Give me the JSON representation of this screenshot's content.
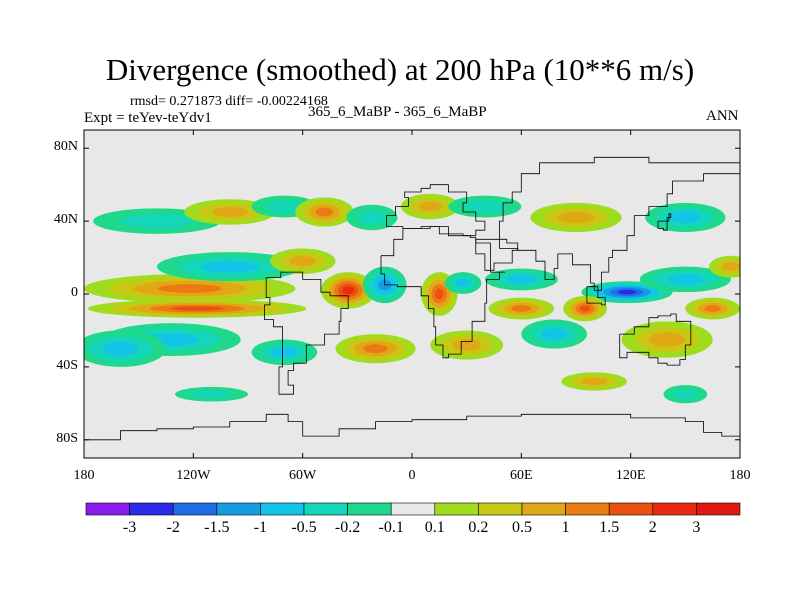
{
  "chart_data": {
    "type": "heatmap",
    "title": "Divergence (smoothed) at 200 hPa (10**6 m/s)",
    "stats": "rmsd= 0.271873  diff= -0.00224168",
    "experiment": "Expt = teYev-teYdv1",
    "cases": "365_6_MaBP - 365_6_MaBP",
    "season": "ANN",
    "xlim": [
      -180,
      180
    ],
    "ylim": [
      -90,
      90
    ],
    "x_ticks": [
      {
        "value": -180,
        "label": "180"
      },
      {
        "value": -120,
        "label": "120W"
      },
      {
        "value": -60,
        "label": "60W"
      },
      {
        "value": 0,
        "label": "0"
      },
      {
        "value": 60,
        "label": "60E"
      },
      {
        "value": 120,
        "label": "120E"
      },
      {
        "value": 180,
        "label": "180"
      }
    ],
    "y_ticks": [
      {
        "value": 80,
        "label": "80N"
      },
      {
        "value": 40,
        "label": "40N"
      },
      {
        "value": 0,
        "label": "0"
      },
      {
        "value": -40,
        "label": "40S"
      },
      {
        "value": -80,
        "label": "80S"
      }
    ],
    "colorbar": {
      "levels": [
        "-3",
        "-2",
        "-1.5",
        "-1",
        "-0.5",
        "-0.2",
        "-0.1",
        "0.1",
        "0.2",
        "0.5",
        "1",
        "1.5",
        "2",
        "3"
      ],
      "colors": [
        "#8a1cf0",
        "#2a2ae8",
        "#1f6ee8",
        "#149ee0",
        "#12c4e8",
        "#14d6b8",
        "#1ed88c",
        "#e8e8e8",
        "#a0dc1e",
        "#c8c814",
        "#e0a814",
        "#ec7a14",
        "#ec5010",
        "#e82a10",
        "#e01a10"
      ]
    },
    "background_color": "#e8e8e8",
    "features": [
      {
        "lon": -122,
        "lat": 3,
        "rlon": 58,
        "rlat": 8,
        "value": 1.0
      },
      {
        "lon": -118,
        "lat": -8,
        "rlon": 60,
        "rlat": 5,
        "value": 1.5
      },
      {
        "lon": -100,
        "lat": 15,
        "rlon": 40,
        "rlat": 8,
        "value": -0.5
      },
      {
        "lon": -132,
        "lat": -25,
        "rlon": 38,
        "rlat": 9,
        "value": -0.5
      },
      {
        "lon": -160,
        "lat": -30,
        "rlon": 25,
        "rlat": 10,
        "value": -0.5
      },
      {
        "lon": -140,
        "lat": 40,
        "rlon": 35,
        "rlat": 7,
        "value": -0.2
      },
      {
        "lon": -100,
        "lat": 45,
        "rlon": 25,
        "rlat": 7,
        "value": 0.5
      },
      {
        "lon": -70,
        "lat": 48,
        "rlon": 18,
        "rlat": 6,
        "value": -0.2
      },
      {
        "lon": -48,
        "lat": 45,
        "rlon": 16,
        "rlat": 8,
        "value": 1.0
      },
      {
        "lon": -22,
        "lat": 42,
        "rlon": 14,
        "rlat": 7,
        "value": -0.2
      },
      {
        "lon": 10,
        "lat": 48,
        "rlon": 16,
        "rlat": 7,
        "value": 0.5
      },
      {
        "lon": 40,
        "lat": 48,
        "rlon": 20,
        "rlat": 6,
        "value": -0.2
      },
      {
        "lon": 90,
        "lat": 42,
        "rlon": 25,
        "rlat": 8,
        "value": 0.5
      },
      {
        "lon": 150,
        "lat": 42,
        "rlon": 22,
        "rlat": 8,
        "value": -0.5
      },
      {
        "lon": -60,
        "lat": 18,
        "rlon": 18,
        "rlat": 7,
        "value": 0.5
      },
      {
        "lon": -35,
        "lat": 2,
        "rlon": 15,
        "rlat": 10,
        "value": 2.0
      },
      {
        "lon": -15,
        "lat": 5,
        "rlon": 12,
        "rlat": 10,
        "value": -1.0
      },
      {
        "lon": 15,
        "lat": 0,
        "rlon": 10,
        "rlat": 12,
        "value": 1.5
      },
      {
        "lon": 28,
        "lat": 6,
        "rlon": 10,
        "rlat": 6,
        "value": -0.5
      },
      {
        "lon": 60,
        "lat": 8,
        "rlon": 20,
        "rlat": 6,
        "value": -0.5
      },
      {
        "lon": 60,
        "lat": -8,
        "rlon": 18,
        "rlat": 6,
        "value": 1.0
      },
      {
        "lon": 118,
        "lat": 1,
        "rlon": 25,
        "rlat": 6,
        "value": -2.0
      },
      {
        "lon": 150,
        "lat": 8,
        "rlon": 25,
        "rlat": 7,
        "value": -0.5
      },
      {
        "lon": 95,
        "lat": -8,
        "rlon": 12,
        "rlat": 7,
        "value": 1.5
      },
      {
        "lon": 78,
        "lat": -22,
        "rlon": 18,
        "rlat": 8,
        "value": -0.5
      },
      {
        "lon": 140,
        "lat": -25,
        "rlon": 25,
        "rlat": 10,
        "value": 0.5
      },
      {
        "lon": 165,
        "lat": -8,
        "rlon": 15,
        "rlat": 6,
        "value": 1.0
      },
      {
        "lon": 30,
        "lat": -28,
        "rlon": 20,
        "rlat": 8,
        "value": 0.5
      },
      {
        "lon": -20,
        "lat": -30,
        "rlon": 22,
        "rlat": 8,
        "value": 1.0
      },
      {
        "lon": -70,
        "lat": -32,
        "rlon": 18,
        "rlat": 7,
        "value": -0.5
      },
      {
        "lon": 100,
        "lat": -48,
        "rlon": 18,
        "rlat": 5,
        "value": 0.5
      },
      {
        "lon": 150,
        "lat": -55,
        "rlon": 12,
        "rlat": 5,
        "value": -0.2
      },
      {
        "lon": -110,
        "lat": -55,
        "rlon": 20,
        "rlat": 4,
        "value": -0.2
      },
      {
        "lon": 175,
        "lat": 15,
        "rlon": 12,
        "rlat": 6,
        "value": 0.5
      }
    ],
    "coastlines": [
      [
        [
          -14,
          37
        ],
        [
          -9,
          43
        ],
        [
          -2,
          48
        ],
        [
          -4,
          53
        ],
        [
          5,
          56
        ],
        [
          10,
          58
        ],
        [
          20,
          60
        ],
        [
          30,
          56
        ],
        [
          28,
          50
        ],
        [
          35,
          45
        ],
        [
          40,
          40
        ],
        [
          35,
          35
        ],
        [
          28,
          32
        ],
        [
          15,
          33
        ],
        [
          5,
          37
        ],
        [
          -5,
          36
        ],
        [
          -14,
          37
        ]
      ],
      [
        [
          -17,
          21
        ],
        [
          -15,
          11
        ],
        [
          -8,
          5
        ],
        [
          5,
          4
        ],
        [
          9,
          -1
        ],
        [
          12,
          -8
        ],
        [
          13,
          -18
        ],
        [
          17,
          -28
        ],
        [
          20,
          -35
        ],
        [
          27,
          -33
        ],
        [
          33,
          -26
        ],
        [
          40,
          -15
        ],
        [
          41,
          -5
        ],
        [
          48,
          8
        ],
        [
          51,
          12
        ],
        [
          43,
          12
        ],
        [
          35,
          28
        ],
        [
          32,
          31
        ],
        [
          20,
          32
        ],
        [
          10,
          37
        ],
        [
          -5,
          36
        ],
        [
          -10,
          30
        ],
        [
          -17,
          21
        ]
      ],
      [
        [
          35,
          30
        ],
        [
          40,
          22
        ],
        [
          45,
          13
        ],
        [
          55,
          17
        ],
        [
          58,
          24
        ],
        [
          52,
          28
        ],
        [
          48,
          30
        ],
        [
          35,
          30
        ]
      ],
      [
        [
          48,
          30
        ],
        [
          58,
          25
        ],
        [
          68,
          24
        ],
        [
          73,
          18
        ],
        [
          78,
          8
        ],
        [
          80,
          14
        ],
        [
          88,
          22
        ],
        [
          98,
          16
        ],
        [
          100,
          6
        ],
        [
          104,
          2
        ],
        [
          108,
          12
        ],
        [
          110,
          20
        ],
        [
          118,
          24
        ],
        [
          122,
          32
        ],
        [
          122,
          40
        ],
        [
          130,
          43
        ],
        [
          140,
          48
        ],
        [
          143,
          55
        ],
        [
          160,
          62
        ],
        [
          172,
          66
        ],
        [
          180,
          66
        ],
        [
          180,
          72
        ],
        [
          130,
          72
        ],
        [
          100,
          75
        ],
        [
          70,
          72
        ],
        [
          60,
          66
        ],
        [
          55,
          56
        ],
        [
          50,
          50
        ],
        [
          48,
          40
        ],
        [
          48,
          30
        ]
      ],
      [
        [
          96,
          4
        ],
        [
          104,
          -5
        ],
        [
          106,
          -6
        ],
        [
          102,
          -2
        ],
        [
          96,
          4
        ]
      ],
      [
        [
          114,
          -22
        ],
        [
          114,
          -34
        ],
        [
          118,
          -35
        ],
        [
          130,
          -32
        ],
        [
          135,
          -35
        ],
        [
          140,
          -38
        ],
        [
          147,
          -39
        ],
        [
          150,
          -36
        ],
        [
          153,
          -28
        ],
        [
          145,
          -15
        ],
        [
          142,
          -11
        ],
        [
          135,
          -12
        ],
        [
          130,
          -13
        ],
        [
          122,
          -18
        ],
        [
          114,
          -22
        ]
      ],
      [
        [
          -80,
          9
        ],
        [
          -78,
          -2
        ],
        [
          -81,
          -6
        ],
        [
          -76,
          -14
        ],
        [
          -71,
          -18
        ],
        [
          -71,
          -30
        ],
        [
          -73,
          -40
        ],
        [
          -73,
          -50
        ],
        [
          -69,
          -55
        ],
        [
          -65,
          -55
        ],
        [
          -68,
          -50
        ],
        [
          -65,
          -42
        ],
        [
          -58,
          -38
        ],
        [
          -48,
          -28
        ],
        [
          -40,
          -22
        ],
        [
          -39,
          -15
        ],
        [
          -35,
          -8
        ],
        [
          -35,
          -5
        ],
        [
          -45,
          -1
        ],
        [
          -50,
          1
        ],
        [
          -60,
          8
        ],
        [
          -72,
          12
        ],
        [
          -80,
          9
        ]
      ],
      [
        [
          -180,
          -78
        ],
        [
          -160,
          -80
        ],
        [
          -140,
          -75
        ],
        [
          -120,
          -74
        ],
        [
          -100,
          -73
        ],
        [
          -80,
          -70
        ],
        [
          -68,
          -66
        ],
        [
          -60,
          -70
        ],
        [
          -40,
          -78
        ],
        [
          -20,
          -74
        ],
        [
          0,
          -70
        ],
        [
          30,
          -69
        ],
        [
          60,
          -67
        ],
        [
          90,
          -66
        ],
        [
          120,
          -66
        ],
        [
          150,
          -68
        ],
        [
          160,
          -70
        ],
        [
          170,
          -76
        ],
        [
          180,
          -78
        ]
      ],
      [
        [
          135,
          40
        ],
        [
          138,
          36
        ],
        [
          140,
          35
        ],
        [
          141,
          40
        ],
        [
          142,
          44
        ],
        [
          140,
          42
        ],
        [
          135,
          40
        ]
      ]
    ]
  }
}
